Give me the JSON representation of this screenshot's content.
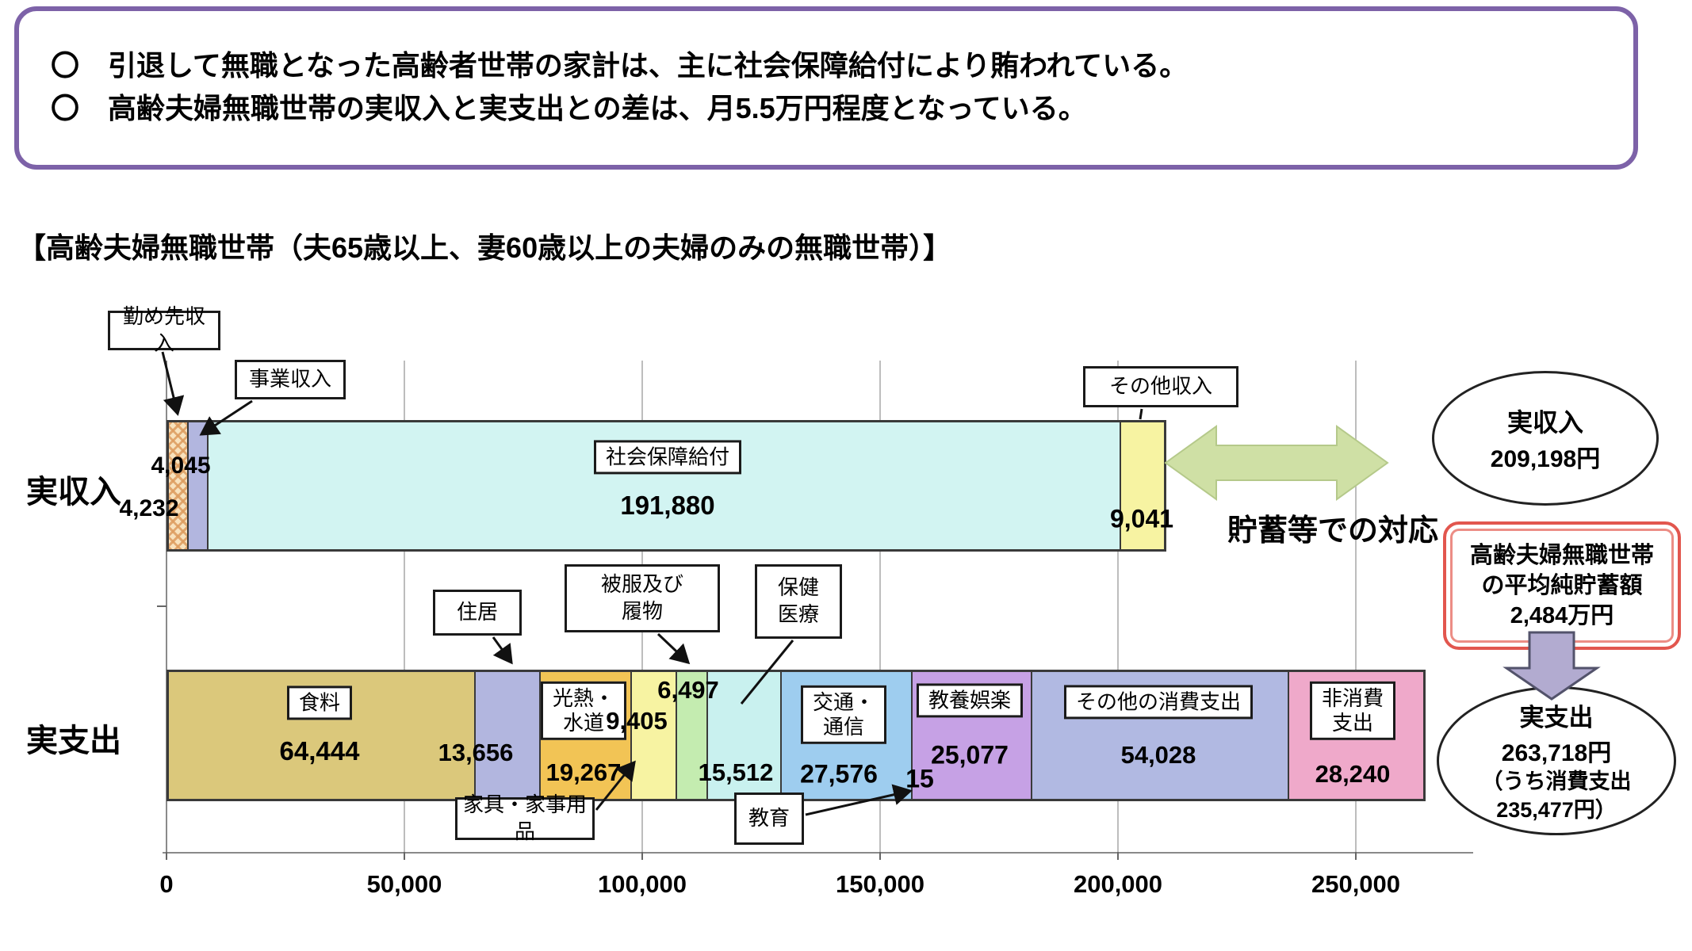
{
  "header_box": {
    "bullets": [
      "〇　引退して無職となった高齢者世帯の家計は、主に社会保障給付により賄われている。",
      "〇　高齢夫婦無職世帯の実収入と実支出との差は、月5.5万円程度となっている。"
    ]
  },
  "section_title": "【高齢夫婦無職世帯（夫65歳以上、妻60歳以上の夫婦のみの無職世帯）】",
  "chart_data": {
    "type": "bar",
    "orientation": "horizontal",
    "x_axis": {
      "ticks": [
        0,
        50000,
        100000,
        150000,
        200000,
        250000
      ],
      "tick_labels": [
        "0",
        "50,000",
        "100,000",
        "150,000",
        "200,000",
        "250,000"
      ],
      "max": 272500,
      "grid": true
    },
    "rows": [
      {
        "label": "実収入",
        "total": 209198,
        "segments": [
          {
            "name": "勤め先収入",
            "value": 4232,
            "value_label": "4,232",
            "color": "hatch",
            "base": "#f8e2bd"
          },
          {
            "name": "事業収入",
            "value": 4045,
            "value_label": "4,045",
            "color": "#b2b6df"
          },
          {
            "name": "社会保障給付",
            "value": 191880,
            "value_label": "191,880",
            "color": "#d2f4f2",
            "box_label": "社会保障給付"
          },
          {
            "name": "その他収入",
            "value": 9041,
            "value_label": "9,041",
            "color": "#f7f3a2"
          }
        ]
      },
      {
        "label": "実支出",
        "total": 263718,
        "consumption_total": 235477,
        "segments": [
          {
            "name": "食料",
            "value": 64444,
            "value_label": "64,444",
            "color": "#dbc87b",
            "box_label": "食料"
          },
          {
            "name": "住居",
            "value": 13656,
            "value_label": "13,656",
            "color": "#b2b6df"
          },
          {
            "name": "光熱・水道",
            "value": 19267,
            "value_label": "19,267",
            "color": "#f2c455",
            "box_label": "光熱・\n水道"
          },
          {
            "name": "家具・家事用品",
            "value": 9405,
            "value_label": "9,405",
            "color": "#f7f3a2"
          },
          {
            "name": "被服及び履物",
            "value": 6497,
            "value_label": "6,497",
            "color": "#c4ecb0"
          },
          {
            "name": "保健医療",
            "value": 15512,
            "value_label": "15,512",
            "color": "#c9f1ef"
          },
          {
            "name": "交通・通信",
            "value": 27576,
            "value_label": "27,576",
            "color": "#9ecdef",
            "box_label": "交通・\n通信"
          },
          {
            "name": "教育",
            "value": 15,
            "value_label": "15",
            "color": "#e8e8e8"
          },
          {
            "name": "教養娯楽",
            "value": 25077,
            "value_label": "25,077",
            "color": "#c6a1e5",
            "box_label": "教養娯楽"
          },
          {
            "name": "その他の消費支出",
            "value": 54028,
            "value_label": "54,028",
            "color": "#b1b9e2",
            "box_label": "その他の消費支出"
          },
          {
            "name": "非消費支出",
            "value": 28240,
            "value_label": "28,240",
            "color": "#efa9ca",
            "box_label": "非消費\n支出"
          }
        ]
      }
    ]
  },
  "callouts": {
    "work_income": "勤め先収入",
    "business_income": "事業収入",
    "other_income": "その他収入",
    "housing": "住居",
    "clothing": "被服及び\n履物",
    "health": "保健\n医療",
    "furniture": "家具・家事用品",
    "education": "教育"
  },
  "annotations": {
    "savings_arrow_label": "貯蓄等での対応",
    "income_ellipse": {
      "title": "実収入",
      "value": "209,198円"
    },
    "savings_note": "高齢夫婦無職世帯\nの平均純貯蓄額\n2,484万円",
    "expense_ellipse": {
      "title": "実支出",
      "value": "263,718円",
      "sub": "（うち消費支出\n235,477円）"
    }
  },
  "colors": {
    "header_border": "#7d62a8",
    "grid": "#bdbdbd",
    "axis": "#8a8a8a",
    "hatch_accent": "#dd9c5f",
    "green_arrow": "#cfe0a5",
    "green_arrow_edge": "#b5c98a",
    "purple_arrow": "#b2abd0",
    "purple_arrow_edge": "#53536b",
    "savings_border": "#e2564e"
  }
}
